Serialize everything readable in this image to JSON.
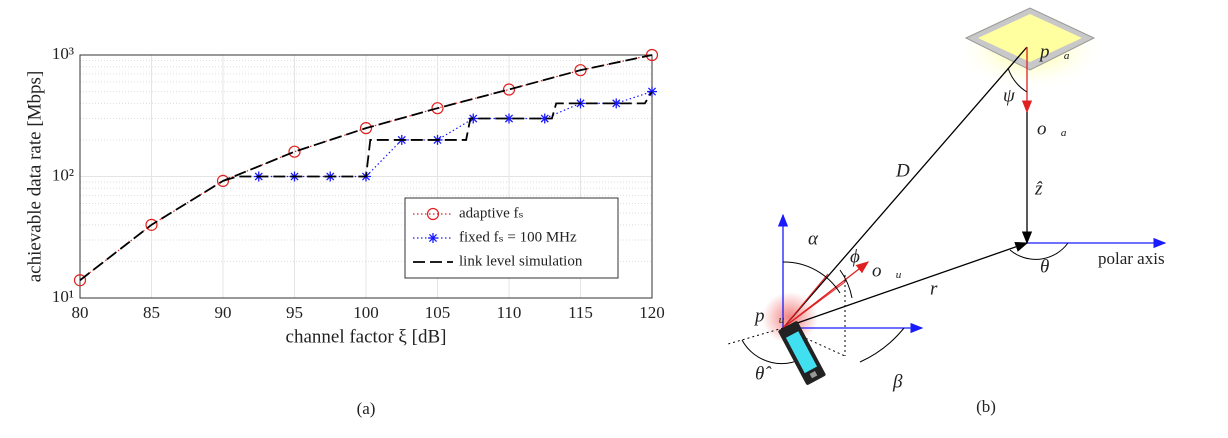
{
  "chart_data": {
    "type": "line",
    "caption": "(a)",
    "x_label": "channel factor ξ [dB]",
    "y_label": "achievable data rate [Mbps]",
    "xlim": [
      80,
      120
    ],
    "xticks": [
      80,
      85,
      90,
      95,
      100,
      105,
      110,
      115,
      120
    ],
    "ylim": [
      10,
      1000
    ],
    "yticks": [
      {
        "value": 10,
        "label": "10¹"
      },
      {
        "value": 100,
        "label": "10²"
      },
      {
        "value": 1000,
        "label": "10³"
      }
    ],
    "log_y": true,
    "grid": true,
    "legend": "lower right",
    "series": [
      {
        "name": "adaptive fₛ",
        "color": "#e02020",
        "marker": "circle",
        "dash": "dotted",
        "x": [
          80,
          85,
          90,
          95,
          100,
          105,
          110,
          115,
          120
        ],
        "values": [
          14,
          40,
          92,
          160,
          250,
          365,
          520,
          750,
          1000
        ]
      },
      {
        "name": "fixed fₛ = 100 MHz",
        "color": "#1a1aff",
        "marker": "star",
        "dash": "dotted",
        "x": [
          92.5,
          95,
          97.5,
          100,
          102.5,
          105,
          107.5,
          110,
          112.5,
          115,
          117.5,
          120
        ],
        "values": [
          100,
          100,
          100,
          100,
          200,
          200,
          300,
          300,
          300,
          400,
          400,
          500
        ]
      },
      {
        "name": "link level simulation",
        "color": "#000000",
        "marker": "none",
        "dash": "dashed",
        "x": [
          80,
          85,
          90,
          95,
          100,
          105,
          110,
          115,
          120,
          120,
          90,
          91,
          100,
          100.3,
          107,
          107.3,
          113,
          113.3,
          119.5,
          120
        ],
        "values": [
          14,
          40,
          92,
          160,
          250,
          365,
          520,
          750,
          1000,
          null,
          92,
          100,
          100,
          200,
          200,
          300,
          300,
          400,
          400,
          500
        ]
      }
    ]
  },
  "diagram": {
    "caption": "(b)",
    "labels": [
      "p⃗ₐ",
      "ψ",
      "o⃗ₐ",
      "ẑ",
      "D",
      "α",
      "ϕ",
      "o⃗ᵤ",
      "r",
      "θ",
      "polar axis",
      "p⃗ᵤ",
      "θ̂",
      "β"
    ]
  }
}
